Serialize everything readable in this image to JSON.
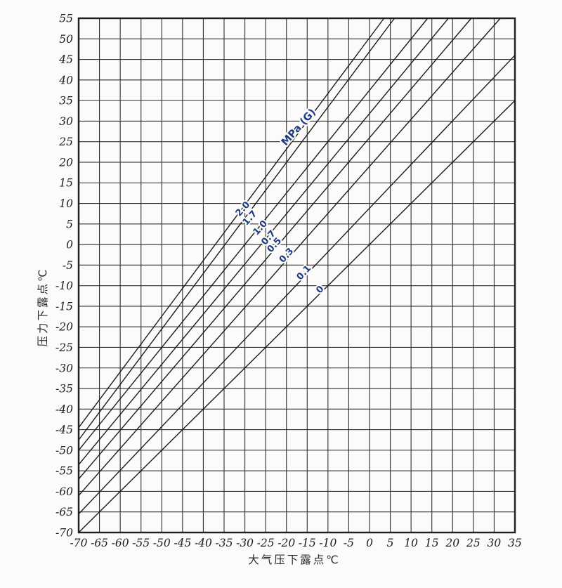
{
  "page": {
    "background": "#fcfbf9",
    "kind": "scanned dew point conversion chart"
  },
  "chart_data": {
    "type": "line",
    "title": "",
    "xlabel": "大气压下露点℃",
    "ylabel": "压力下露点℃",
    "xlim": [
      -70,
      35
    ],
    "ylim": [
      -70,
      55
    ],
    "xticks": [
      -70,
      -65,
      -60,
      -55,
      -50,
      -45,
      -40,
      -35,
      -30,
      -25,
      -20,
      -15,
      -10,
      -5,
      0,
      5,
      10,
      15,
      20,
      25,
      30,
      35
    ],
    "yticks": [
      55,
      50,
      45,
      40,
      35,
      30,
      25,
      20,
      15,
      10,
      5,
      0,
      -5,
      -10,
      -15,
      -20,
      -25,
      -30,
      -35,
      -40,
      -45,
      -50,
      -55,
      -60,
      -65,
      -70
    ],
    "grid": true,
    "grid_step": 5,
    "legend_position": "along-lines",
    "unit_label": {
      "text": "MPa (G)",
      "x": -16.5,
      "y": 28,
      "angle": -48
    },
    "label_angle": -48,
    "series": [
      {
        "name": "2.0",
        "points": [
          [
            -70,
            -44.5
          ],
          [
            3.5,
            55
          ]
        ],
        "label_at": {
          "x": -30,
          "y": 8.2
        }
      },
      {
        "name": "1.7",
        "points": [
          [
            -70,
            -47.5
          ],
          [
            6.0,
            55
          ]
        ],
        "label_at": {
          "x": -28.3,
          "y": 6.0
        }
      },
      {
        "name": "1.0",
        "points": [
          [
            -70,
            -50.0
          ],
          [
            14.0,
            55
          ]
        ],
        "label_at": {
          "x": -25.8,
          "y": 3.6
        }
      },
      {
        "name": "0.7",
        "points": [
          [
            -70,
            -53.5
          ],
          [
            19.0,
            55
          ]
        ],
        "label_at": {
          "x": -23.8,
          "y": 1.2
        }
      },
      {
        "name": "0.5",
        "points": [
          [
            -70,
            -57.0
          ],
          [
            24.5,
            55
          ]
        ],
        "label_at": {
          "x": -22.4,
          "y": -0.6
        }
      },
      {
        "name": "0.3",
        "points": [
          [
            -70,
            -61.0
          ],
          [
            31.5,
            55
          ]
        ],
        "label_at": {
          "x": -19.5,
          "y": -3.1
        }
      },
      {
        "name": "0.1",
        "points": [
          [
            -70,
            -65.5
          ],
          [
            35,
            46
          ]
        ],
        "label_at": {
          "x": -15.3,
          "y": -7.3
        }
      },
      {
        "name": "0",
        "points": [
          [
            -70,
            -70.0
          ],
          [
            35,
            35
          ]
        ],
        "label_at": {
          "x": -11.4,
          "y": -11.4
        }
      }
    ],
    "colors": {
      "grid": "#2e2e2e",
      "frame": "#1f1f1f",
      "curve": "#1b1b1b",
      "line_label": "#1e3a7f",
      "tick_text": "#1c1c1c"
    }
  }
}
